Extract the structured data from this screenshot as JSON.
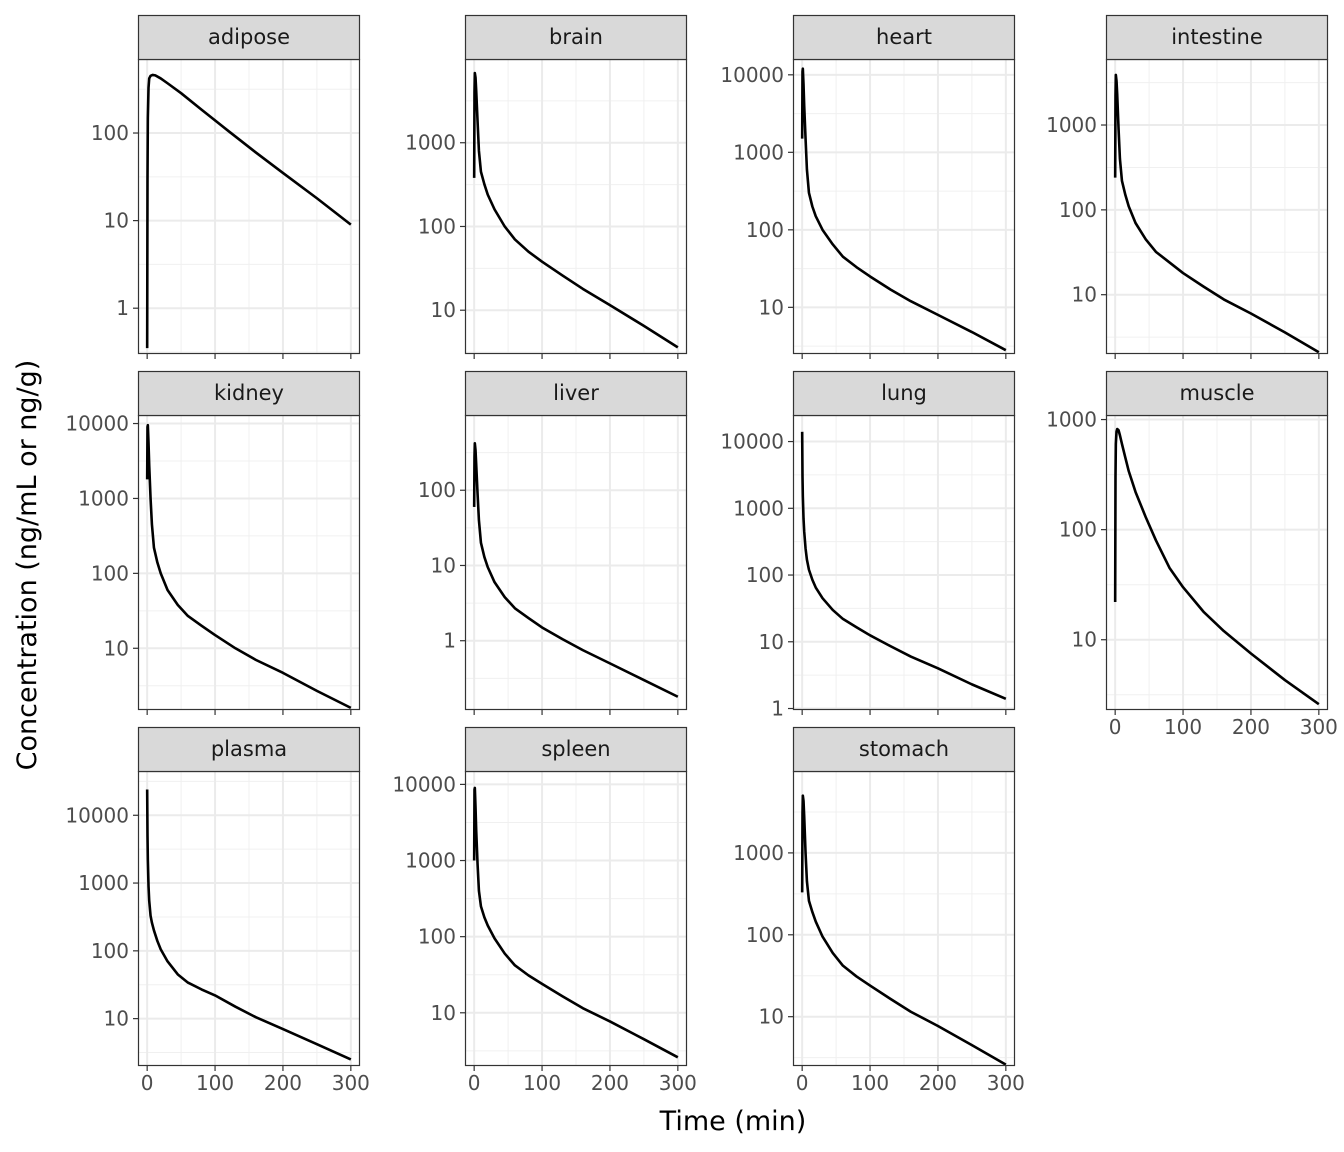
{
  "chart_data": {
    "type": "line",
    "xlabel": "Time (min)",
    "ylabel": "Concentration (ng/mL or ng/g)",
    "y_scale": "log10",
    "xlim": [
      0,
      300
    ],
    "x_ticks": [
      0,
      100,
      200,
      300
    ],
    "x_tick_labels": [
      "0",
      "100",
      "200",
      "300"
    ],
    "grid": true,
    "theme": "black-and-white facets",
    "line_color": "#000000",
    "panels": [
      {
        "name": "adipose",
        "ylim": [
          0.3,
          700
        ],
        "y_ticks": [
          1,
          10,
          100
        ],
        "y_tick_labels": [
          "1",
          "10",
          "100"
        ],
        "x": [
          0,
          0.5,
          1,
          2,
          3,
          5,
          8,
          12,
          20,
          30,
          50,
          80,
          120,
          160,
          200,
          250,
          300
        ],
        "y": [
          0.35,
          30,
          150,
          330,
          420,
          450,
          460,
          455,
          420,
          370,
          285,
          185,
          105,
          60,
          35,
          18,
          9
        ]
      },
      {
        "name": "brain",
        "ylim": [
          3,
          10000
        ],
        "y_ticks": [
          10,
          100,
          1000
        ],
        "y_tick_labels": [
          "10",
          "100",
          "1000"
        ],
        "x": [
          0,
          0.5,
          1,
          2,
          3,
          5,
          7,
          10,
          15,
          20,
          30,
          45,
          60,
          80,
          100,
          130,
          160,
          200,
          250,
          300
        ],
        "y": [
          380,
          4000,
          6800,
          6000,
          4200,
          1800,
          800,
          450,
          320,
          240,
          160,
          100,
          70,
          50,
          38,
          26,
          18,
          11.5,
          6.5,
          3.6
        ]
      },
      {
        "name": "heart",
        "ylim": [
          2.5,
          16000
        ],
        "y_ticks": [
          10,
          100,
          1000,
          10000
        ],
        "y_tick_labels": [
          "10",
          "100",
          "1000",
          "10000"
        ],
        "x": [
          0,
          0.5,
          1,
          2,
          3,
          5,
          7,
          10,
          15,
          20,
          30,
          45,
          60,
          80,
          100,
          130,
          160,
          200,
          250,
          300
        ],
        "y": [
          1500,
          11000,
          12000,
          7500,
          4000,
          1500,
          600,
          300,
          200,
          150,
          100,
          65,
          45,
          33,
          25,
          17,
          12,
          8,
          4.8,
          2.8
        ]
      },
      {
        "name": "intestine",
        "ylim": [
          2,
          6000
        ],
        "y_ticks": [
          10,
          100,
          1000
        ],
        "y_tick_labels": [
          "10",
          "100",
          "1000"
        ],
        "x": [
          0,
          0.5,
          1,
          2,
          3,
          5,
          7,
          10,
          15,
          20,
          30,
          45,
          60,
          80,
          100,
          130,
          160,
          200,
          250,
          300
        ],
        "y": [
          240,
          2200,
          3900,
          3300,
          2300,
          900,
          400,
          220,
          150,
          110,
          70,
          45,
          32,
          24,
          18,
          12.5,
          8.8,
          6,
          3.6,
          2.1
        ]
      },
      {
        "name": "kidney",
        "ylim": [
          1.5,
          13000
        ],
        "y_ticks": [
          10,
          100,
          1000,
          10000
        ],
        "y_tick_labels": [
          "10",
          "100",
          "1000",
          "10000"
        ],
        "x": [
          0,
          0.5,
          1,
          2,
          3,
          5,
          7,
          10,
          15,
          20,
          30,
          45,
          60,
          80,
          100,
          130,
          160,
          200,
          250,
          300
        ],
        "y": [
          1800,
          9000,
          9500,
          5500,
          2800,
          1000,
          450,
          220,
          140,
          100,
          60,
          38,
          27,
          20,
          15,
          10,
          7,
          4.7,
          2.7,
          1.6
        ]
      },
      {
        "name": "liver",
        "ylim": [
          0.12,
          1000
        ],
        "y_ticks": [
          1,
          10,
          100
        ],
        "y_tick_labels": [
          "1",
          "10",
          "100"
        ],
        "x": [
          0,
          0.5,
          1,
          2,
          3,
          5,
          7,
          10,
          15,
          20,
          30,
          45,
          60,
          80,
          100,
          130,
          160,
          200,
          250,
          300
        ],
        "y": [
          60,
          280,
          420,
          340,
          220,
          90,
          40,
          20,
          13,
          9.5,
          6,
          3.8,
          2.7,
          2,
          1.5,
          1.05,
          0.75,
          0.5,
          0.3,
          0.18
        ]
      },
      {
        "name": "lung",
        "ylim": [
          0.95,
          25000
        ],
        "y_ticks": [
          1,
          10,
          100,
          1000,
          10000
        ],
        "y_tick_labels": [
          "1",
          "10",
          "100",
          "1000",
          "10000"
        ],
        "x": [
          0,
          0.5,
          1,
          2,
          3,
          5,
          7,
          10,
          15,
          20,
          30,
          45,
          60,
          80,
          100,
          130,
          160,
          200,
          250,
          300
        ],
        "y": [
          14000,
          3000,
          1500,
          700,
          450,
          250,
          170,
          120,
          85,
          65,
          45,
          30,
          22,
          16.5,
          12.5,
          8.6,
          6,
          4,
          2.3,
          1.4
        ]
      },
      {
        "name": "muscle",
        "ylim": [
          2.3,
          1100
        ],
        "y_ticks": [
          10,
          100,
          1000
        ],
        "y_tick_labels": [
          "10",
          "100",
          "1000"
        ],
        "x": [
          0,
          0.5,
          1,
          2,
          3,
          5,
          7,
          10,
          15,
          20,
          30,
          45,
          60,
          80,
          100,
          130,
          160,
          200,
          250,
          300
        ],
        "y": [
          22,
          300,
          600,
          780,
          820,
          800,
          720,
          600,
          450,
          340,
          220,
          130,
          80,
          45,
          30,
          18,
          12,
          7.5,
          4.3,
          2.6
        ]
      },
      {
        "name": "plasma",
        "ylim": [
          2,
          45000
        ],
        "y_ticks": [
          10,
          100,
          1000,
          10000
        ],
        "y_tick_labels": [
          "10",
          "100",
          "1000",
          "10000"
        ],
        "x": [
          0,
          0.5,
          1,
          2,
          3,
          5,
          7,
          10,
          15,
          20,
          30,
          45,
          60,
          80,
          100,
          130,
          160,
          200,
          250,
          300
        ],
        "y": [
          24000,
          5000,
          2200,
          900,
          550,
          330,
          260,
          200,
          140,
          105,
          70,
          45,
          34,
          27,
          22,
          15,
          10.5,
          7,
          4.2,
          2.5
        ]
      },
      {
        "name": "spleen",
        "ylim": [
          2,
          15000
        ],
        "y_ticks": [
          10,
          100,
          1000,
          10000
        ],
        "y_tick_labels": [
          "10",
          "100",
          "1000",
          "10000"
        ],
        "x": [
          0,
          0.5,
          1,
          2,
          3,
          5,
          7,
          10,
          15,
          20,
          30,
          45,
          60,
          80,
          100,
          130,
          160,
          200,
          250,
          300
        ],
        "y": [
          1000,
          8500,
          9000,
          5000,
          2500,
          900,
          400,
          250,
          180,
          140,
          95,
          60,
          42,
          31,
          24,
          16.5,
          11.5,
          7.7,
          4.5,
          2.6
        ]
      },
      {
        "name": "stomach",
        "ylim": [
          2.5,
          10000
        ],
        "y_ticks": [
          10,
          100,
          1000
        ],
        "y_tick_labels": [
          "10",
          "100",
          "1000"
        ],
        "x": [
          0,
          0.5,
          1,
          2,
          3,
          5,
          7,
          10,
          15,
          20,
          30,
          45,
          60,
          80,
          100,
          130,
          160,
          200,
          250,
          300
        ],
        "y": [
          330,
          3000,
          5000,
          4300,
          2800,
          1000,
          450,
          260,
          190,
          145,
          95,
          60,
          42,
          31,
          24,
          16.5,
          11.5,
          7.7,
          4.5,
          2.6
        ]
      }
    ]
  }
}
